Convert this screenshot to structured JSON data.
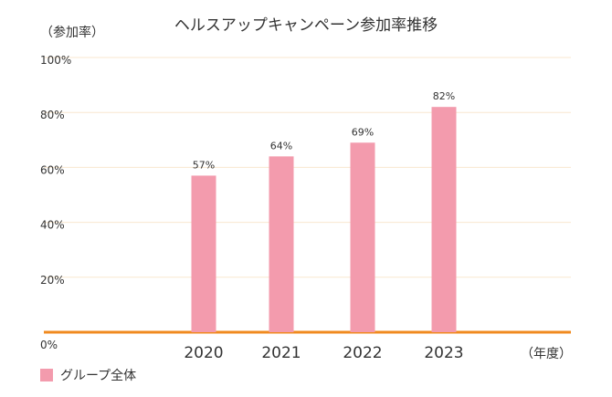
{
  "chart_data": {
    "type": "bar",
    "title": "ヘルスアップキャンペーン参加率推移",
    "ylabel": "（参加率）",
    "xlabel": "（年度）",
    "categories": [
      "2020",
      "2021",
      "2022",
      "2023"
    ],
    "series": [
      {
        "name": "グループ全体",
        "values": [
          57,
          64,
          69,
          82
        ],
        "color": "#f39bad"
      }
    ],
    "data_labels": [
      "57%",
      "64%",
      "69%",
      "82%"
    ],
    "ylim": [
      0,
      100
    ],
    "y_ticks": [
      0,
      20,
      40,
      60,
      80,
      100
    ],
    "y_tick_labels": [
      "0%",
      "20%",
      "40%",
      "60%",
      "80%",
      "100%"
    ],
    "grid": true,
    "grid_color": "#f8e7cf",
    "baseline_color": "#f08a1f",
    "legend_position": "bottom-left"
  }
}
